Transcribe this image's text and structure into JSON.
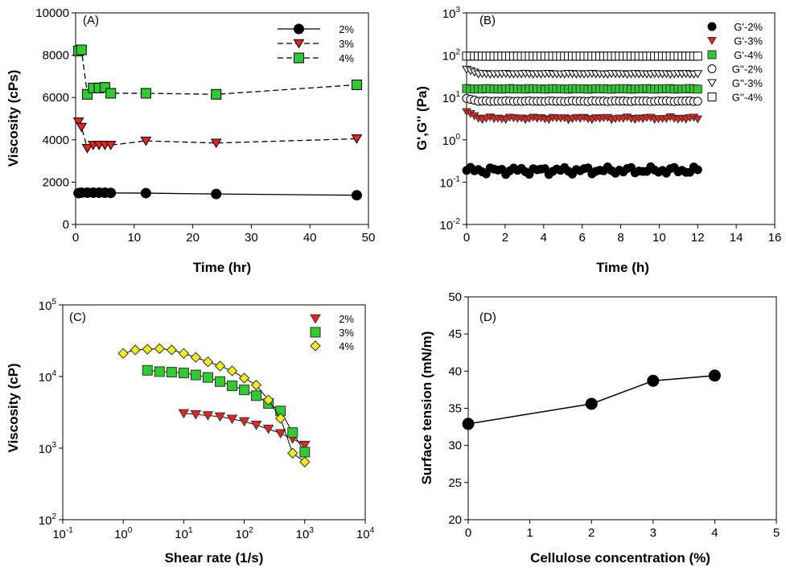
{
  "chart_data": [
    {
      "panel_label": "(A)",
      "type": "line",
      "xlabel": "Time (hr)",
      "ylabel": "Viscosity (cPs)",
      "xlim": [
        0,
        50
      ],
      "ylim": [
        0,
        10000
      ],
      "xticks": [
        0,
        10,
        20,
        30,
        40,
        50
      ],
      "yticks": [
        0,
        2000,
        4000,
        6000,
        8000,
        10000
      ],
      "legend_position": "top-right",
      "grid": false,
      "series": [
        {
          "name": "2%",
          "marker": "circle",
          "color": "#000000",
          "line": "solid",
          "x": [
            0.5,
            1,
            2,
            3,
            4,
            5,
            6,
            12,
            24,
            48
          ],
          "y": [
            1480,
            1500,
            1500,
            1500,
            1500,
            1500,
            1490,
            1480,
            1440,
            1380
          ]
        },
        {
          "name": "3%",
          "marker": "triangle-down",
          "color": "#e8221c",
          "line": "dashed",
          "x": [
            0.5,
            1,
            2,
            3,
            4,
            5,
            6,
            12,
            24,
            48
          ],
          "y": [
            4850,
            4600,
            3600,
            3750,
            3750,
            3750,
            3750,
            3950,
            3850,
            4050
          ]
        },
        {
          "name": "4%",
          "marker": "square",
          "color": "#2ecc2e",
          "line": "dashed",
          "x": [
            0.5,
            1,
            2,
            3,
            4,
            5,
            6,
            12,
            24,
            48
          ],
          "y": [
            8200,
            8250,
            6150,
            6450,
            6450,
            6480,
            6200,
            6200,
            6150,
            6600
          ]
        }
      ]
    },
    {
      "panel_label": "(B)",
      "type": "scatter",
      "xlabel": "Time (h)",
      "ylabel": "G',G'' (Pa)",
      "xlim": [
        0,
        16
      ],
      "ylim_log10": [
        -2,
        3
      ],
      "xticks": [
        0,
        2,
        4,
        6,
        8,
        10,
        12,
        14,
        16
      ],
      "yticks_log10": [
        -2,
        -1,
        0,
        1,
        2,
        3
      ],
      "legend_position": "top-right",
      "grid": false,
      "x_range": [
        0,
        12
      ],
      "points_per_series": 60,
      "series": [
        {
          "name": "G'-2%",
          "marker": "circle",
          "color": "#000000",
          "filled": true,
          "level": 0.19,
          "spread": 0.22
        },
        {
          "name": "G'-3%",
          "marker": "triangle-down",
          "color": "#e8221c",
          "filled": true,
          "level": 3.2,
          "spread": 0.08,
          "start": 4.6
        },
        {
          "name": "G'-4%",
          "marker": "square",
          "color": "#2ecc2e",
          "filled": true,
          "level": 16,
          "spread": 0.02
        },
        {
          "name": "G''-2%",
          "marker": "circle",
          "color": "#000000",
          "filled": false,
          "level": 8.2,
          "spread": 0.02,
          "start": 9.5
        },
        {
          "name": "G''-3%",
          "marker": "triangle-down",
          "color": "#000000",
          "filled": false,
          "level": 36,
          "spread": 0.02,
          "start": 46
        },
        {
          "name": "G''-4%",
          "marker": "square",
          "color": "#000000",
          "filled": false,
          "level": 95,
          "spread": 0.0
        }
      ]
    },
    {
      "panel_label": "(C)",
      "type": "line",
      "xlabel": "Shear rate (1/s)",
      "ylabel": "Viscosity (cP)",
      "xlim_log10": [
        -1,
        4
      ],
      "ylim_log10": [
        2,
        5
      ],
      "xticks_log10": [
        -1,
        0,
        1,
        2,
        3,
        4
      ],
      "yticks_log10": [
        2,
        3,
        4,
        5
      ],
      "legend_position": "top-right",
      "grid": false,
      "series": [
        {
          "name": "2%",
          "marker": "triangle-down",
          "color": "#e8221c",
          "x": [
            10,
            15.8,
            25.1,
            39.8,
            63.1,
            100,
            158,
            251,
            398,
            631,
            1000
          ],
          "y": [
            3050,
            2950,
            2850,
            2750,
            2550,
            2350,
            2100,
            1850,
            1600,
            1350,
            1100
          ]
        },
        {
          "name": "3%",
          "marker": "square",
          "color": "#2ecc2e",
          "x": [
            2.51,
            3.98,
            6.31,
            10,
            15.8,
            25.1,
            39.8,
            63.1,
            100,
            158,
            251,
            398,
            631,
            1000
          ],
          "y": [
            12200,
            11700,
            11500,
            11200,
            10500,
            9700,
            8500,
            7400,
            6500,
            5400,
            4200,
            3300,
            1650,
            880
          ]
        },
        {
          "name": "4%",
          "marker": "diamond",
          "color": "#f4ee16",
          "x": [
            1,
            1.58,
            2.51,
            3.98,
            6.31,
            10,
            15.8,
            25.1,
            39.8,
            63.1,
            100,
            158,
            251,
            398,
            631,
            1000
          ],
          "y": [
            21000,
            23500,
            24000,
            24500,
            23500,
            21000,
            18500,
            16000,
            14000,
            12000,
            9500,
            7600,
            4700,
            2600,
            850,
            640
          ]
        }
      ]
    },
    {
      "panel_label": "(D)",
      "type": "line",
      "xlabel": "Cellulose concentration (%)",
      "ylabel": "Surface tension (mN/m)",
      "xlim": [
        0,
        5
      ],
      "ylim": [
        20,
        50
      ],
      "xticks": [
        0,
        1,
        2,
        3,
        4,
        5
      ],
      "yticks": [
        20,
        25,
        30,
        35,
        40,
        45,
        50
      ],
      "grid": false,
      "series": [
        {
          "marker": "circle",
          "color": "#000000",
          "x": [
            0,
            2,
            3,
            4
          ],
          "y": [
            32.9,
            35.6,
            38.7,
            39.4
          ]
        }
      ]
    }
  ]
}
